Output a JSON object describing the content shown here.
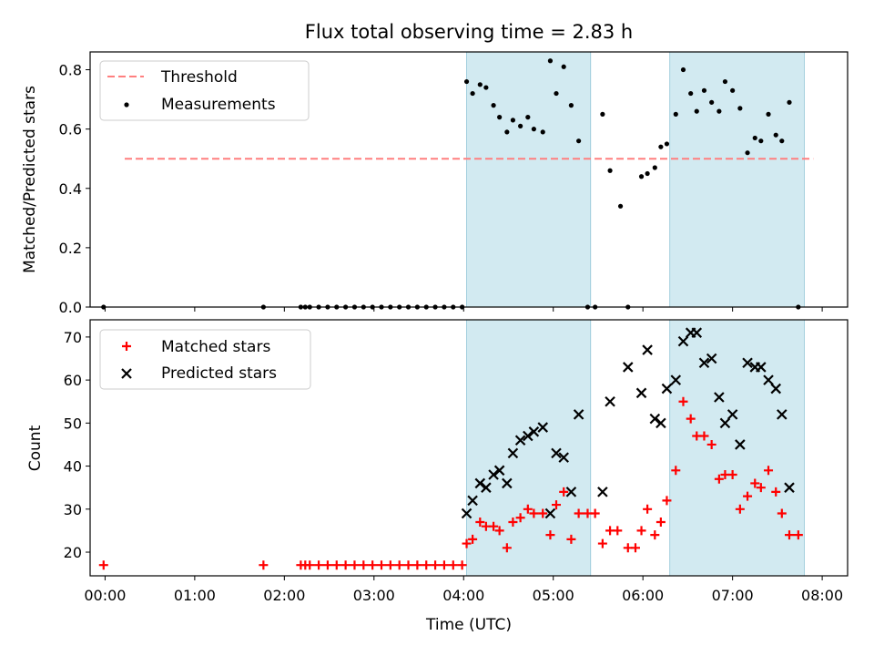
{
  "chart_data": [
    {
      "type": "scatter",
      "title": "Flux total observing time = 2.83 h",
      "xlabel": "",
      "ylabel": "Matched/Predicted stars",
      "xlim": [
        "23:50",
        "08:17"
      ],
      "ylim": [
        0.0,
        0.86
      ],
      "yticks": [
        "0.0",
        "0.2",
        "0.4",
        "0.6",
        "0.8"
      ],
      "shaded_intervals": [
        [
          "04:02",
          "05:25"
        ],
        [
          "06:18",
          "07:48"
        ]
      ],
      "legend": {
        "position": "top-left",
        "entries": [
          "Threshold",
          "Measurements"
        ]
      },
      "threshold": {
        "name": "Threshold",
        "value": 0.5,
        "x_range": [
          "23:50",
          "07:54"
        ],
        "color": "#ff7f7f"
      },
      "series": [
        {
          "name": "Measurements",
          "color": "#000000",
          "points": [
            [
              "23:59",
              0.0
            ],
            [
              "01:46",
              0.0
            ],
            [
              "02:11",
              0.0
            ],
            [
              "02:14",
              0.0
            ],
            [
              "02:17",
              0.0
            ],
            [
              "02:23",
              0.0
            ],
            [
              "02:29",
              0.0
            ],
            [
              "02:35",
              0.0
            ],
            [
              "02:41",
              0.0
            ],
            [
              "02:47",
              0.0
            ],
            [
              "02:53",
              0.0
            ],
            [
              "02:59",
              0.0
            ],
            [
              "03:05",
              0.0
            ],
            [
              "03:11",
              0.0
            ],
            [
              "03:17",
              0.0
            ],
            [
              "03:23",
              0.0
            ],
            [
              "03:29",
              0.0
            ],
            [
              "03:35",
              0.0
            ],
            [
              "03:41",
              0.0
            ],
            [
              "03:47",
              0.0
            ],
            [
              "03:53",
              0.0
            ],
            [
              "03:59",
              0.0
            ],
            [
              "04:02",
              0.76
            ],
            [
              "04:06",
              0.72
            ],
            [
              "04:11",
              0.75
            ],
            [
              "04:15",
              0.74
            ],
            [
              "04:20",
              0.68
            ],
            [
              "04:24",
              0.64
            ],
            [
              "04:29",
              0.59
            ],
            [
              "04:33",
              0.63
            ],
            [
              "04:38",
              0.61
            ],
            [
              "04:43",
              0.64
            ],
            [
              "04:47",
              0.6
            ],
            [
              "04:53",
              0.59
            ],
            [
              "04:58",
              0.83
            ],
            [
              "05:02",
              0.72
            ],
            [
              "05:07",
              0.81
            ],
            [
              "05:12",
              0.68
            ],
            [
              "05:17",
              0.56
            ],
            [
              "05:23",
              0.0
            ],
            [
              "05:28",
              0.0
            ],
            [
              "05:33",
              0.65
            ],
            [
              "05:38",
              0.46
            ],
            [
              "05:45",
              0.34
            ],
            [
              "05:50",
              0.0
            ],
            [
              "05:59",
              0.44
            ],
            [
              "06:03",
              0.45
            ],
            [
              "06:08",
              0.47
            ],
            [
              "06:12",
              0.54
            ],
            [
              "06:16",
              0.55
            ],
            [
              "06:22",
              0.65
            ],
            [
              "06:27",
              0.8
            ],
            [
              "06:32",
              0.72
            ],
            [
              "06:36",
              0.66
            ],
            [
              "06:41",
              0.73
            ],
            [
              "06:46",
              0.69
            ],
            [
              "06:51",
              0.66
            ],
            [
              "06:55",
              0.76
            ],
            [
              "07:00",
              0.73
            ],
            [
              "07:05",
              0.67
            ],
            [
              "07:10",
              0.52
            ],
            [
              "07:15",
              0.57
            ],
            [
              "07:19",
              0.56
            ],
            [
              "07:24",
              0.65
            ],
            [
              "07:29",
              0.58
            ],
            [
              "07:33",
              0.56
            ],
            [
              "07:38",
              0.69
            ],
            [
              "07:44",
              0.0
            ]
          ]
        }
      ]
    },
    {
      "type": "scatter",
      "title": "",
      "xlabel": "Time (UTC)",
      "ylabel": "Count",
      "xlim": [
        "23:50",
        "08:17"
      ],
      "ylim": [
        14.5,
        74
      ],
      "yticks": [
        "20",
        "30",
        "40",
        "50",
        "60",
        "70"
      ],
      "xticks": [
        "00:00",
        "01:00",
        "02:00",
        "03:00",
        "04:00",
        "05:00",
        "06:00",
        "07:00",
        "08:00"
      ],
      "shaded_intervals": [
        [
          "04:02",
          "05:25"
        ],
        [
          "06:18",
          "07:48"
        ]
      ],
      "legend": {
        "position": "top-left",
        "entries": [
          "Matched stars",
          "Predicted stars"
        ]
      },
      "series": [
        {
          "name": "Matched stars",
          "marker": "plus",
          "color": "#ff0000",
          "points": [
            [
              "23:59",
              17
            ],
            [
              "01:46",
              17
            ],
            [
              "02:11",
              17
            ],
            [
              "02:14",
              17
            ],
            [
              "02:17",
              17
            ],
            [
              "02:23",
              17
            ],
            [
              "02:29",
              17
            ],
            [
              "02:35",
              17
            ],
            [
              "02:41",
              17
            ],
            [
              "02:47",
              17
            ],
            [
              "02:53",
              17
            ],
            [
              "02:59",
              17
            ],
            [
              "03:05",
              17
            ],
            [
              "03:11",
              17
            ],
            [
              "03:17",
              17
            ],
            [
              "03:23",
              17
            ],
            [
              "03:29",
              17
            ],
            [
              "03:35",
              17
            ],
            [
              "03:41",
              17
            ],
            [
              "03:47",
              17
            ],
            [
              "03:53",
              17
            ],
            [
              "03:59",
              17
            ],
            [
              "04:02",
              22
            ],
            [
              "04:06",
              23
            ],
            [
              "04:11",
              27
            ],
            [
              "04:15",
              26
            ],
            [
              "04:20",
              26
            ],
            [
              "04:24",
              25
            ],
            [
              "04:29",
              21
            ],
            [
              "04:33",
              27
            ],
            [
              "04:38",
              28
            ],
            [
              "04:43",
              30
            ],
            [
              "04:47",
              29
            ],
            [
              "04:53",
              29
            ],
            [
              "04:58",
              24
            ],
            [
              "05:02",
              31
            ],
            [
              "05:07",
              34
            ],
            [
              "05:12",
              23
            ],
            [
              "05:17",
              29
            ],
            [
              "05:23",
              29
            ],
            [
              "05:28",
              29
            ],
            [
              "05:33",
              22
            ],
            [
              "05:38",
              25
            ],
            [
              "05:43",
              25
            ],
            [
              "05:50",
              21
            ],
            [
              "05:55",
              21
            ],
            [
              "05:59",
              25
            ],
            [
              "06:03",
              30
            ],
            [
              "06:08",
              24
            ],
            [
              "06:12",
              27
            ],
            [
              "06:16",
              32
            ],
            [
              "06:22",
              39
            ],
            [
              "06:27",
              55
            ],
            [
              "06:32",
              51
            ],
            [
              "06:36",
              47
            ],
            [
              "06:41",
              47
            ],
            [
              "06:46",
              45
            ],
            [
              "06:51",
              37
            ],
            [
              "06:55",
              38
            ],
            [
              "07:00",
              38
            ],
            [
              "07:05",
              30
            ],
            [
              "07:10",
              33
            ],
            [
              "07:15",
              36
            ],
            [
              "07:19",
              35
            ],
            [
              "07:24",
              39
            ],
            [
              "07:29",
              34
            ],
            [
              "07:33",
              29
            ],
            [
              "07:38",
              24
            ],
            [
              "07:44",
              24
            ]
          ]
        },
        {
          "name": "Predicted stars",
          "marker": "x",
          "color": "#000000",
          "points": [
            [
              "04:02",
              29
            ],
            [
              "04:06",
              32
            ],
            [
              "04:11",
              36
            ],
            [
              "04:15",
              35
            ],
            [
              "04:20",
              38
            ],
            [
              "04:24",
              39
            ],
            [
              "04:29",
              36
            ],
            [
              "04:33",
              43
            ],
            [
              "04:38",
              46
            ],
            [
              "04:43",
              47
            ],
            [
              "04:47",
              48
            ],
            [
              "04:53",
              49
            ],
            [
              "04:58",
              29
            ],
            [
              "05:02",
              43
            ],
            [
              "05:07",
              42
            ],
            [
              "05:12",
              34
            ],
            [
              "05:17",
              52
            ],
            [
              "05:33",
              34
            ],
            [
              "05:38",
              55
            ],
            [
              "05:50",
              63
            ],
            [
              "05:59",
              57
            ],
            [
              "06:03",
              67
            ],
            [
              "06:08",
              51
            ],
            [
              "06:12",
              50
            ],
            [
              "06:16",
              58
            ],
            [
              "06:22",
              60
            ],
            [
              "06:27",
              69
            ],
            [
              "06:32",
              71
            ],
            [
              "06:36",
              71
            ],
            [
              "06:41",
              64
            ],
            [
              "06:46",
              65
            ],
            [
              "06:51",
              56
            ],
            [
              "06:55",
              50
            ],
            [
              "07:00",
              52
            ],
            [
              "07:05",
              45
            ],
            [
              "07:10",
              64
            ],
            [
              "07:15",
              63
            ],
            [
              "07:19",
              63
            ],
            [
              "07:24",
              60
            ],
            [
              "07:29",
              58
            ],
            [
              "07:33",
              52
            ],
            [
              "07:38",
              35
            ]
          ]
        }
      ]
    }
  ],
  "colors": {
    "shade": "#add8e6",
    "threshold": "#ff7f7f",
    "matched": "#ff0000",
    "predicted": "#000000",
    "measurement": "#000000"
  }
}
